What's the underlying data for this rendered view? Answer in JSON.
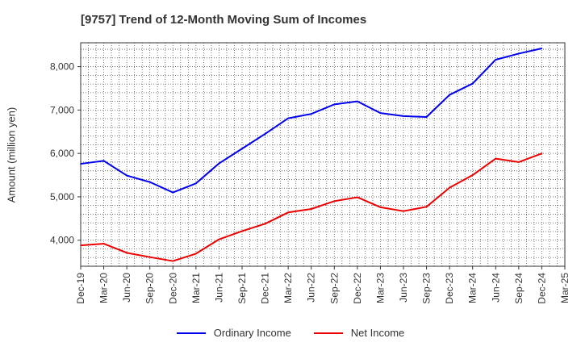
{
  "chart_data": {
    "type": "line",
    "title": "[9757]  Trend of 12-Month Moving Sum of Incomes",
    "xlabel": "",
    "ylabel": "Amount (million yen)",
    "categories": [
      "Dec-19",
      "Mar-20",
      "Jun-20",
      "Sep-20",
      "Dec-20",
      "Mar-21",
      "Jun-21",
      "Sep-21",
      "Dec-21",
      "Mar-22",
      "Jun-22",
      "Sep-22",
      "Dec-22",
      "Mar-23",
      "Jun-23",
      "Sep-23",
      "Dec-23",
      "Mar-24",
      "Jun-24",
      "Sep-24",
      "Dec-24",
      "Mar-25"
    ],
    "ylim": [
      3400,
      8550
    ],
    "yticks": [
      4000,
      5000,
      6000,
      7000,
      8000
    ],
    "ytick_labels": [
      "4,000",
      "5,000",
      "6,000",
      "7,000",
      "8,000"
    ],
    "grid": true,
    "legend_position": "bottom-center",
    "series": [
      {
        "name": "Ordinary Income",
        "color": "#0000ee",
        "values": [
          5760,
          5830,
          5490,
          5340,
          5100,
          5310,
          5770,
          6110,
          6450,
          6810,
          6910,
          7130,
          7200,
          6930,
          6860,
          6840,
          7350,
          7610,
          8160,
          8300,
          8420,
          null
        ]
      },
      {
        "name": "Net Income",
        "color": "#ee0000",
        "values": [
          3880,
          3920,
          3710,
          3610,
          3520,
          3690,
          4020,
          4210,
          4380,
          4640,
          4720,
          4900,
          4990,
          4760,
          4670,
          4770,
          5210,
          5500,
          5880,
          5800,
          6000,
          null
        ]
      }
    ]
  }
}
